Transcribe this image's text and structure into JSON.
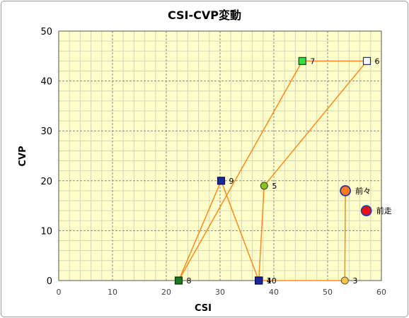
{
  "chart_data": {
    "type": "scatter",
    "title": "CSI-CVP変動",
    "xlabel": "CSI",
    "ylabel": "CVP",
    "xlim": [
      0,
      60
    ],
    "ylim": [
      0,
      50
    ],
    "x_ticks": [
      0,
      10,
      20,
      30,
      40,
      50,
      60
    ],
    "y_ticks": [
      0,
      10,
      20,
      30,
      40,
      50
    ],
    "grid": true,
    "colors": {
      "plot_background": "#ffffcc",
      "major_grid": "#888888",
      "minor_grid": "#d6d6b4",
      "line": "#ff8c1a",
      "title": "#000000"
    },
    "path": [
      {
        "label": "3",
        "x": 53.2,
        "y": 0,
        "shape": "circle",
        "fill": "#f5c542",
        "stroke": "#555555",
        "size": "small"
      },
      {
        "label": "4",
        "x": 37.2,
        "y": 0,
        "shape": "square",
        "fill": "#1a2a9a",
        "stroke": "#0a0a50",
        "size": "small"
      },
      {
        "label": "5",
        "x": 38.2,
        "y": 19,
        "shape": "circle",
        "fill": "#8fbf26",
        "stroke": "#2a4a00",
        "size": "small"
      },
      {
        "label": "6",
        "x": 57.3,
        "y": 44,
        "shape": "square",
        "fill": "#ffffff",
        "stroke": "#1a2a9a",
        "size": "small"
      },
      {
        "label": "7",
        "x": 45.3,
        "y": 44,
        "shape": "square",
        "fill": "#33e040",
        "stroke": "#0a4a0a",
        "size": "small"
      },
      {
        "label": "8",
        "x": 22.3,
        "y": 0,
        "shape": "square",
        "fill": "#1f7a1f",
        "stroke": "#0a2a0a",
        "size": "small"
      },
      {
        "label": "9",
        "x": 30.2,
        "y": 20,
        "shape": "square",
        "fill": "#1a2a9a",
        "stroke": "#0a0a50",
        "size": "small"
      },
      {
        "label": "10",
        "x": 37.2,
        "y": 0,
        "shape": "square",
        "fill": "#1a2a9a",
        "stroke": "#0a0a50",
        "size": "small"
      }
    ],
    "extra_points": [
      {
        "label": "前々",
        "x": 53.3,
        "y": 18,
        "shape": "circle",
        "fill": "#ff7a1a",
        "stroke": "#2a3aa0",
        "size": "large"
      },
      {
        "label": "前走",
        "x": 57.2,
        "y": 14,
        "shape": "circle",
        "fill": "#e8101a",
        "stroke": "#2a3aa0",
        "size": "large"
      }
    ],
    "connectors": [
      {
        "from": [
          53.2,
          0
        ],
        "to": [
          53.3,
          18
        ]
      }
    ]
  }
}
